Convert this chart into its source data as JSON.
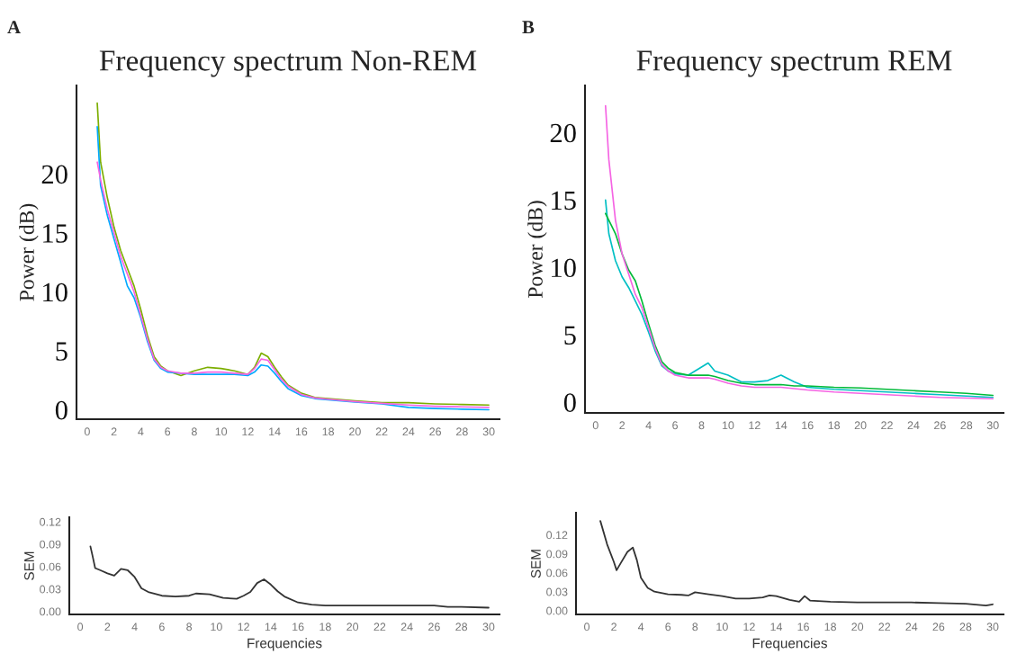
{
  "chart_data": [
    {
      "type": "line",
      "title": "Frequency spectrum Non-REM",
      "ylabel": "Power (dB)",
      "annotations": [
        "A"
      ],
      "xlim": [
        -0.8,
        30.8
      ],
      "xticks": [
        0,
        2,
        4,
        6,
        8,
        10,
        12,
        14,
        16,
        18,
        20,
        22,
        24,
        26,
        28,
        30
      ],
      "ylim": [
        -0.8,
        27.5
      ],
      "yticks": [
        0,
        5,
        10,
        15,
        20
      ],
      "grid": false,
      "x": [
        0.75,
        1,
        1.5,
        2,
        2.5,
        3,
        3.5,
        4,
        4.5,
        5,
        5.5,
        6,
        7,
        8,
        9,
        10,
        11,
        12,
        12.5,
        13,
        13.5,
        14,
        14.5,
        15,
        16,
        17,
        18,
        20,
        22,
        24,
        26,
        28,
        30
      ],
      "series": [
        {
          "color": "#7cae00",
          "values": [
            26,
            21,
            18,
            15.5,
            13.5,
            12,
            10.5,
            8.5,
            6.3,
            4.5,
            3.7,
            3.3,
            2.9,
            3.3,
            3.6,
            3.5,
            3.3,
            3.0,
            3.6,
            4.8,
            4.5,
            3.6,
            2.8,
            2.1,
            1.4,
            1.05,
            0.95,
            0.75,
            0.6,
            0.6,
            0.5,
            0.45,
            0.4
          ]
        },
        {
          "color": "#00a9ff",
          "values": [
            24,
            19,
            16.5,
            14.5,
            12.5,
            10.5,
            9.5,
            7.8,
            5.8,
            4.2,
            3.5,
            3.2,
            3.1,
            3.0,
            3.0,
            3.0,
            3.0,
            2.9,
            3.2,
            3.8,
            3.7,
            3.1,
            2.4,
            1.8,
            1.2,
            0.95,
            0.85,
            0.65,
            0.5,
            0.2,
            0.1,
            0.05,
            0.0
          ]
        },
        {
          "color": "#f564e3",
          "values": [
            21,
            19.5,
            17,
            15,
            13,
            11.5,
            10,
            8,
            6,
            4.3,
            3.6,
            3.3,
            3.1,
            3.1,
            3.2,
            3.2,
            3.1,
            3.0,
            3.5,
            4.3,
            4.2,
            3.4,
            2.6,
            2.0,
            1.3,
            1.0,
            0.9,
            0.7,
            0.55,
            0.4,
            0.3,
            0.25,
            0.2
          ]
        }
      ]
    },
    {
      "type": "line",
      "title": "Frequency spectrum REM",
      "ylabel": "Power (dB)",
      "annotations": [
        "B"
      ],
      "xlim": [
        -0.8,
        30.8
      ],
      "xticks": [
        0,
        2,
        4,
        6,
        8,
        10,
        12,
        14,
        16,
        18,
        20,
        22,
        24,
        26,
        28,
        30
      ],
      "ylim": [
        -0.8,
        23.5
      ],
      "yticks": [
        0,
        5,
        10,
        15,
        20
      ],
      "grid": false,
      "x": [
        0.75,
        1,
        1.5,
        2,
        2.5,
        3,
        3.5,
        4,
        4.5,
        5,
        5.5,
        6,
        7,
        8,
        8.5,
        9,
        10,
        11,
        12,
        13,
        14,
        15,
        16,
        18,
        20,
        22,
        24,
        26,
        28,
        30
      ],
      "series": [
        {
          "color": "#00bfc4",
          "values": [
            15,
            12.5,
            10.5,
            9.3,
            8.5,
            7.5,
            6.5,
            5.2,
            3.8,
            2.7,
            2.3,
            2.1,
            2.0,
            2.6,
            2.9,
            2.3,
            2.0,
            1.5,
            1.5,
            1.6,
            2.0,
            1.5,
            1.1,
            0.95,
            0.85,
            0.75,
            0.65,
            0.55,
            0.45,
            0.35
          ]
        },
        {
          "color": "#00ba38",
          "values": [
            14,
            13.5,
            12.5,
            11,
            9.8,
            9,
            7.5,
            5.8,
            4.2,
            3.0,
            2.5,
            2.2,
            2.0,
            2.0,
            2.0,
            1.9,
            1.6,
            1.4,
            1.3,
            1.3,
            1.3,
            1.2,
            1.2,
            1.1,
            1.05,
            0.95,
            0.85,
            0.75,
            0.65,
            0.5
          ]
        },
        {
          "color": "#f564e3",
          "values": [
            22,
            18,
            13.5,
            11,
            9.5,
            8,
            7,
            5.5,
            4,
            2.8,
            2.3,
            2.0,
            1.8,
            1.8,
            1.8,
            1.7,
            1.4,
            1.2,
            1.1,
            1.1,
            1.1,
            1.0,
            0.9,
            0.75,
            0.65,
            0.55,
            0.45,
            0.35,
            0.3,
            0.25
          ]
        }
      ]
    },
    {
      "type": "line",
      "xlabel": "Frequencies",
      "ylabel": "SEM",
      "xlim": [
        -0.8,
        30.8
      ],
      "xticks": [
        0,
        2,
        4,
        6,
        8,
        10,
        12,
        14,
        16,
        18,
        20,
        22,
        24,
        26,
        28,
        30
      ],
      "ylim": [
        -0.004,
        0.126
      ],
      "yticks": [
        {
          "value": 0,
          "label": "0.00"
        },
        {
          "value": 0.03,
          "label": "0.03"
        },
        {
          "value": 0.06,
          "label": "0.06"
        },
        {
          "value": 0.09,
          "label": "0.09"
        },
        {
          "value": 0.12,
          "label": "0.12"
        }
      ],
      "grid": false,
      "x": [
        0.75,
        0.9,
        1.1,
        1.5,
        2,
        2.5,
        3,
        3.5,
        4,
        4.5,
        5,
        6,
        7,
        8,
        8.5,
        9.5,
        10.5,
        11.5,
        12,
        12.5,
        13,
        13.5,
        14,
        14.5,
        15,
        16,
        17,
        18,
        20,
        22,
        24,
        26,
        27,
        28,
        30
      ],
      "series": [
        {
          "color": "#333333",
          "values": [
            0.087,
            0.075,
            0.058,
            0.055,
            0.051,
            0.048,
            0.057,
            0.055,
            0.046,
            0.031,
            0.026,
            0.021,
            0.02,
            0.021,
            0.024,
            0.023,
            0.018,
            0.017,
            0.021,
            0.026,
            0.038,
            0.043,
            0.036,
            0.027,
            0.02,
            0.012,
            0.009,
            0.008,
            0.008,
            0.008,
            0.008,
            0.008,
            0.006,
            0.006,
            0.005
          ]
        }
      ]
    },
    {
      "type": "line",
      "xlabel": "Frequencies",
      "ylabel": "SEM",
      "xlim": [
        -0.8,
        30.8
      ],
      "xticks": [
        0,
        2,
        4,
        6,
        8,
        10,
        12,
        14,
        16,
        18,
        20,
        22,
        24,
        26,
        28,
        30
      ],
      "ylim": [
        -0.006,
        0.155
      ],
      "yticks": [
        {
          "value": 0,
          "label": "0.00"
        },
        {
          "value": 0.03,
          "label": "0.03"
        },
        {
          "value": 0.06,
          "label": "0.06"
        },
        {
          "value": 0.09,
          "label": "0.09"
        },
        {
          "value": 0.12,
          "label": "0.12"
        }
      ],
      "grid": false,
      "x": [
        1,
        1.5,
        2,
        2.2,
        2.5,
        3,
        3.4,
        3.7,
        4,
        4.5,
        5,
        6,
        7,
        7.5,
        8,
        9,
        10,
        11,
        12,
        13,
        13.5,
        14,
        15,
        15.7,
        16.1,
        16.5,
        18,
        20,
        22,
        24,
        26,
        28,
        29.5,
        30
      ],
      "series": [
        {
          "color": "#333333",
          "values": [
            0.142,
            0.105,
            0.077,
            0.064,
            0.075,
            0.093,
            0.1,
            0.08,
            0.052,
            0.036,
            0.03,
            0.026,
            0.025,
            0.024,
            0.029,
            0.026,
            0.023,
            0.019,
            0.019,
            0.021,
            0.024,
            0.023,
            0.017,
            0.014,
            0.023,
            0.016,
            0.014,
            0.013,
            0.013,
            0.013,
            0.012,
            0.011,
            0.008,
            0.01
          ]
        }
      ]
    }
  ]
}
